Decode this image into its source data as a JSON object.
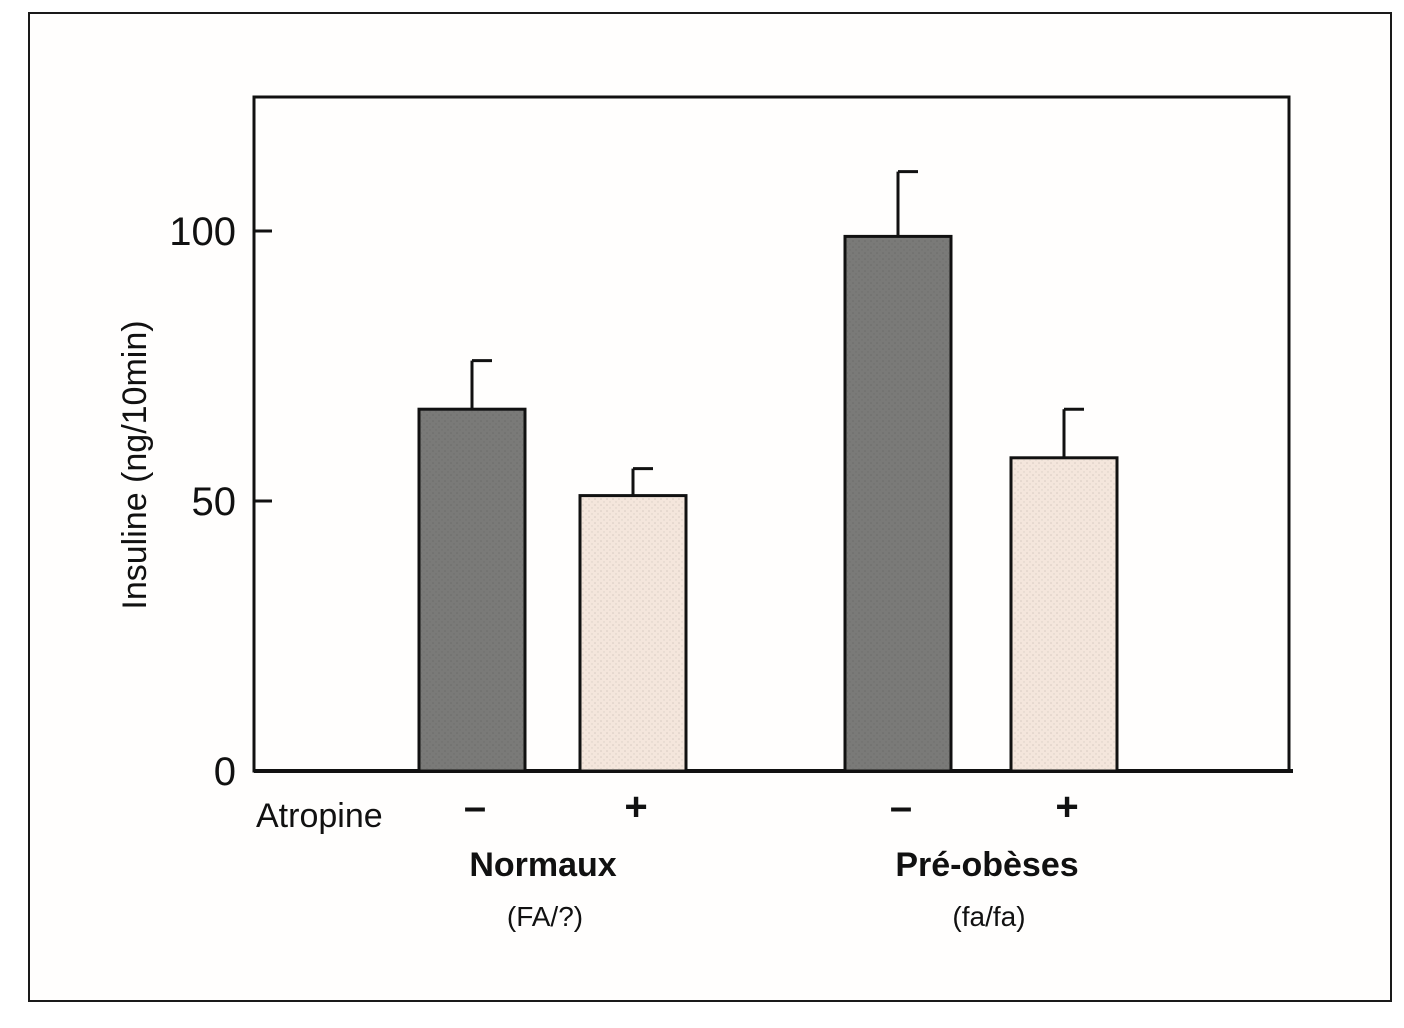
{
  "chart_data": {
    "type": "bar",
    "title": "",
    "ylabel": "Insuline (ng/10min)",
    "xlabel": "",
    "ylim": [
      0,
      125
    ],
    "yticks": [
      0,
      50,
      100
    ],
    "row_label": "Atropine",
    "groups": [
      {
        "name": "Normaux",
        "subtitle": "(FA/?)"
      },
      {
        "name": "Pré-obèses",
        "subtitle": "(fa/fa)"
      }
    ],
    "bars": [
      {
        "group": "Normaux",
        "atropine": "–",
        "value": 67,
        "error": 9,
        "color": "#7a7a78"
      },
      {
        "group": "Normaux",
        "atropine": "+",
        "value": 51,
        "error": 5,
        "color": "#f4e6dc"
      },
      {
        "group": "Pré-obèses",
        "atropine": "–",
        "value": 99,
        "error": 12,
        "color": "#7a7a78"
      },
      {
        "group": "Pré-obèses",
        "atropine": "+",
        "value": 58,
        "error": 9,
        "color": "#f4e6dc"
      }
    ],
    "grid": false,
    "legend": "none"
  }
}
